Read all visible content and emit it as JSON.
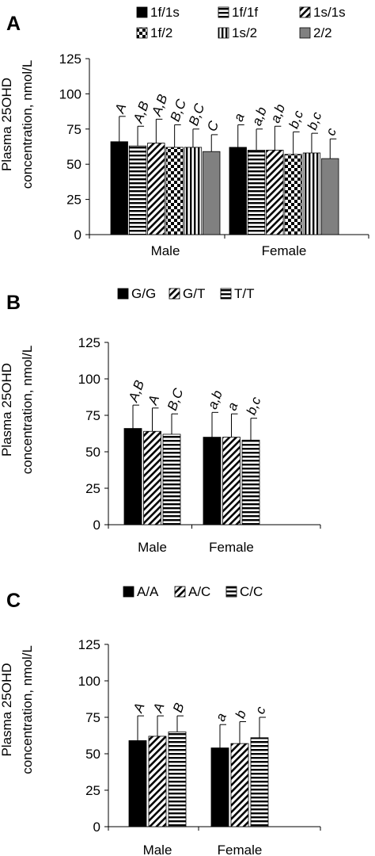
{
  "chart_data": [
    {
      "panel": "A",
      "type": "bar",
      "ylabel_lines": [
        "Plasma 25OHD",
        "concentration, nmol/L"
      ],
      "ylim": [
        0,
        125
      ],
      "yticks": [
        0,
        25,
        50,
        75,
        100,
        125
      ],
      "categories": [
        "Male",
        "Female"
      ],
      "legend_rows": 2,
      "series": [
        {
          "name": "1f/1s",
          "pattern": "solid",
          "values": [
            66,
            62
          ],
          "errors": [
            18,
            16
          ],
          "letters": [
            "A",
            "a"
          ]
        },
        {
          "name": "1f/1f",
          "pattern": "hlines",
          "values": [
            63,
            60
          ],
          "errors": [
            14,
            15
          ],
          "letters": [
            "A,B",
            "a,b"
          ]
        },
        {
          "name": "1s/1s",
          "pattern": "diag",
          "values": [
            65,
            60
          ],
          "errors": [
            17,
            17
          ],
          "letters": [
            "A,B",
            "a,b"
          ]
        },
        {
          "name": "1f/2",
          "pattern": "checker",
          "values": [
            62,
            57
          ],
          "errors": [
            16,
            16
          ],
          "letters": [
            "B,C",
            "b,c"
          ]
        },
        {
          "name": "1s/2",
          "pattern": "vlines",
          "values": [
            62,
            58
          ],
          "errors": [
            13,
            14
          ],
          "letters": [
            "B,C",
            "b,c"
          ]
        },
        {
          "name": "2/2",
          "pattern": "gray",
          "values": [
            59,
            54
          ],
          "errors": [
            12,
            14
          ],
          "letters": [
            "C",
            "c"
          ]
        }
      ]
    },
    {
      "panel": "B",
      "type": "bar",
      "ylabel_lines": [
        "Plasma 25OHD",
        "concentration, nmol/L"
      ],
      "ylim": [
        0,
        125
      ],
      "yticks": [
        0,
        25,
        50,
        75,
        100,
        125
      ],
      "categories": [
        "Male",
        "Female"
      ],
      "legend_rows": 1,
      "series": [
        {
          "name": "G/G",
          "pattern": "solid",
          "values": [
            66,
            60
          ],
          "errors": [
            16,
            17
          ],
          "letters": [
            "A,B",
            "a,b"
          ]
        },
        {
          "name": "G/T",
          "pattern": "diag",
          "values": [
            64,
            60
          ],
          "errors": [
            16,
            16
          ],
          "letters": [
            "A",
            "a"
          ]
        },
        {
          "name": "T/T",
          "pattern": "hlines",
          "values": [
            62,
            58
          ],
          "errors": [
            14,
            15
          ],
          "letters": [
            "B,C",
            "b,c"
          ]
        }
      ]
    },
    {
      "panel": "C",
      "type": "bar",
      "ylabel_lines": [
        "Plasma 25OHD",
        "concentration, nmol/L"
      ],
      "ylim": [
        0,
        125
      ],
      "yticks": [
        0,
        25,
        50,
        75,
        100,
        125
      ],
      "categories": [
        "Male",
        "Female"
      ],
      "legend_rows": 1,
      "series": [
        {
          "name": "A/A",
          "pattern": "solid",
          "values": [
            59,
            54
          ],
          "errors": [
            17,
            16
          ],
          "letters": [
            "A",
            "a"
          ]
        },
        {
          "name": "A/C",
          "pattern": "diag",
          "values": [
            62,
            57
          ],
          "errors": [
            14,
            15
          ],
          "letters": [
            "A",
            "b"
          ]
        },
        {
          "name": "C/C",
          "pattern": "hlines",
          "values": [
            65,
            61
          ],
          "errors": [
            11,
            14
          ],
          "letters": [
            "B",
            "c"
          ]
        }
      ]
    }
  ]
}
